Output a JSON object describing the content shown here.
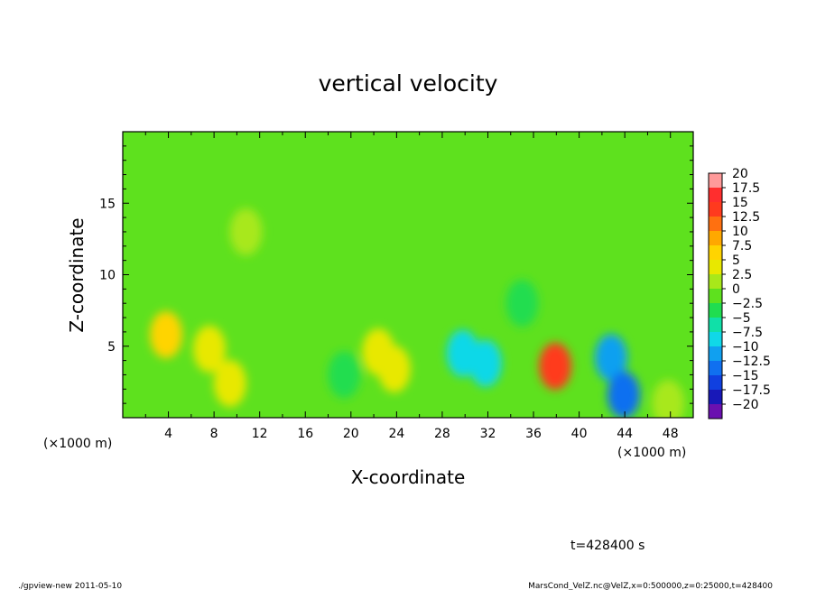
{
  "chart_data": {
    "type": "heatmap",
    "title": "vertical velocity",
    "xlabel": "X-coordinate",
    "ylabel": "Z-coordinate",
    "x_unit_left": "(×1000 m)",
    "x_unit_right": "(×1000 m)",
    "xlim": [
      0,
      50
    ],
    "ylim": [
      0,
      20
    ],
    "x_ticks": [
      4,
      8,
      12,
      16,
      20,
      24,
      28,
      32,
      36,
      40,
      44,
      48
    ],
    "x_tick_labels": [
      "4",
      "8",
      "12",
      "16",
      "20",
      "24",
      "28",
      "32",
      "36",
      "40",
      "44",
      "48"
    ],
    "y_ticks": [
      5,
      10,
      15
    ],
    "y_tick_labels": [
      "5",
      "10",
      "15"
    ],
    "colorbar": {
      "levels": [
        "20",
        "17.5",
        "15",
        "12.5",
        "10",
        "7.5",
        "5",
        "2.5",
        "0",
        "−2.5",
        "−5",
        "−7.5",
        "−10",
        "−12.5",
        "−15",
        "−17.5",
        "−20"
      ],
      "colors": [
        "#ff9a9a",
        "#ff2e2e",
        "#ff3a1e",
        "#ff7010",
        "#ffa800",
        "#ffd400",
        "#e8e800",
        "#a8e81a",
        "#5ee11e",
        "#20dd50",
        "#10e0a8",
        "#10d8e8",
        "#10a0f0",
        "#1070f0",
        "#1040e0",
        "#1818b8",
        "#6a10b0"
      ]
    },
    "background_value": 1.0,
    "features": [
      {
        "x": 3.8,
        "z": 5.8,
        "value": 6.5
      },
      {
        "x": 7.6,
        "z": 4.8,
        "value": 5.0
      },
      {
        "x": 9.4,
        "z": 2.4,
        "value": 6.0
      },
      {
        "x": 10.8,
        "z": 13.0,
        "value": 3.5
      },
      {
        "x": 19.4,
        "z": 3.0,
        "value": -3.5
      },
      {
        "x": 22.4,
        "z": 4.6,
        "value": 5.5
      },
      {
        "x": 23.8,
        "z": 3.4,
        "value": 4.5
      },
      {
        "x": 29.8,
        "z": 4.5,
        "value": -8.0
      },
      {
        "x": 31.8,
        "z": 3.8,
        "value": -7.0
      },
      {
        "x": 35.0,
        "z": 8.0,
        "value": -1.5
      },
      {
        "x": 37.9,
        "z": 3.6,
        "value": 14.0
      },
      {
        "x": 42.8,
        "z": 4.2,
        "value": -10.0
      },
      {
        "x": 43.9,
        "z": 1.6,
        "value": -13.0
      },
      {
        "x": 47.8,
        "z": 1.0,
        "value": 3.0
      }
    ],
    "time_label": "t=428400 s",
    "footer_left": "./gpview-new   2011-05-10",
    "footer_right": "MarsCond_VelZ.nc@VelZ,x=0:500000,z=0:25000,t=428400"
  }
}
